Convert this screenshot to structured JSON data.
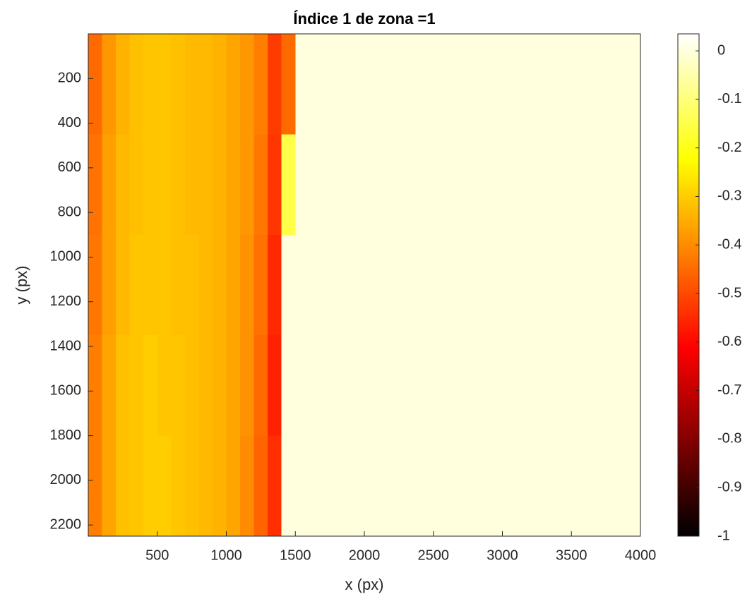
{
  "chart_data": {
    "type": "heatmap",
    "title": "Índice 1 de zona =1",
    "x_label": "x (px)",
    "y_label": "y (px)",
    "colormap": "hot",
    "xlim": [
      0,
      4000
    ],
    "ylim": [
      0,
      2250
    ],
    "y_reversed": true,
    "xticks": [
      500,
      1000,
      1500,
      2000,
      2500,
      3000,
      3500,
      4000
    ],
    "yticks": [
      200,
      400,
      600,
      800,
      1000,
      1200,
      1400,
      1600,
      1800,
      2000,
      2200
    ],
    "clim": [
      -1,
      0.035
    ],
    "cticks": [
      0,
      -0.1,
      -0.2,
      -0.3,
      -0.4,
      -0.5,
      -0.6,
      -0.7,
      -0.8,
      -0.9,
      -1
    ],
    "z": [
      [
        -0.45,
        -0.38,
        -0.34,
        -0.32,
        -0.31,
        -0.31,
        -0.32,
        -0.33,
        -0.33,
        -0.34,
        -0.36,
        -0.38,
        -0.42,
        -0.52,
        -0.45,
        0,
        0,
        0,
        0,
        0,
        0,
        0,
        0,
        0,
        0,
        0,
        0,
        0,
        0,
        0,
        0,
        0,
        0,
        0,
        0,
        0,
        0,
        0,
        0,
        0
      ],
      [
        -0.44,
        -0.37,
        -0.33,
        -0.32,
        -0.31,
        -0.31,
        -0.32,
        -0.33,
        -0.33,
        -0.34,
        -0.36,
        -0.38,
        -0.43,
        -0.53,
        -0.15,
        0,
        0,
        0,
        0,
        0,
        0,
        0,
        0,
        0,
        0,
        0,
        0,
        0,
        0,
        0,
        0,
        0,
        0,
        0,
        0,
        0,
        0,
        0,
        0,
        0
      ],
      [
        -0.43,
        -0.37,
        -0.33,
        -0.31,
        -0.31,
        -0.31,
        -0.32,
        -0.32,
        -0.33,
        -0.34,
        -0.36,
        -0.39,
        -0.44,
        -0.55,
        0,
        0,
        0,
        0,
        0,
        0,
        0,
        0,
        0,
        0,
        0,
        0,
        0,
        0,
        0,
        0,
        0,
        0,
        0,
        0,
        0,
        0,
        0,
        0,
        0,
        0
      ],
      [
        -0.42,
        -0.36,
        -0.32,
        -0.31,
        -0.3,
        -0.31,
        -0.31,
        -0.32,
        -0.33,
        -0.34,
        -0.36,
        -0.39,
        -0.45,
        -0.56,
        0,
        0,
        0,
        0,
        0,
        0,
        0,
        0,
        0,
        0,
        0,
        0,
        0,
        0,
        0,
        0,
        0,
        0,
        0,
        0,
        0,
        0,
        0,
        0,
        0,
        0
      ],
      [
        -0.42,
        -0.36,
        -0.32,
        -0.31,
        -0.3,
        -0.3,
        -0.31,
        -0.32,
        -0.33,
        -0.34,
        -0.36,
        -0.4,
        -0.46,
        -0.54,
        0,
        0,
        0,
        0,
        0,
        0,
        0,
        0,
        0,
        0,
        0,
        0,
        0,
        0,
        0,
        0,
        0,
        0,
        0,
        0,
        0,
        0,
        0,
        0,
        0,
        0
      ]
    ]
  }
}
